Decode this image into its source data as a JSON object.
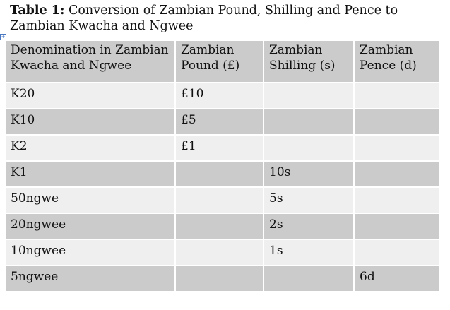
{
  "caption": {
    "label": "Table 1:",
    "text": " Conversion of Zambian Pound, Shilling and Pence to Zambian Kwacha and Ngwee"
  },
  "table": {
    "headers": [
      "Denomination in Zambian Kwacha and Ngwee",
      "Zambian Pound (£)",
      "Zambian Shilling (s)",
      "Zambian Pence (d)"
    ],
    "rows": [
      [
        "K20",
        "£10",
        "",
        ""
      ],
      [
        "K10",
        "£5",
        "",
        ""
      ],
      [
        "K2",
        "£1",
        "",
        ""
      ],
      [
        "K1",
        "",
        "10s",
        ""
      ],
      [
        "50ngwe",
        "",
        "5s",
        ""
      ],
      [
        "20ngwee",
        "",
        "2s",
        ""
      ],
      [
        "10ngwee",
        "",
        "1s",
        ""
      ],
      [
        "5ngwee",
        "",
        "",
        "6d"
      ]
    ]
  }
}
